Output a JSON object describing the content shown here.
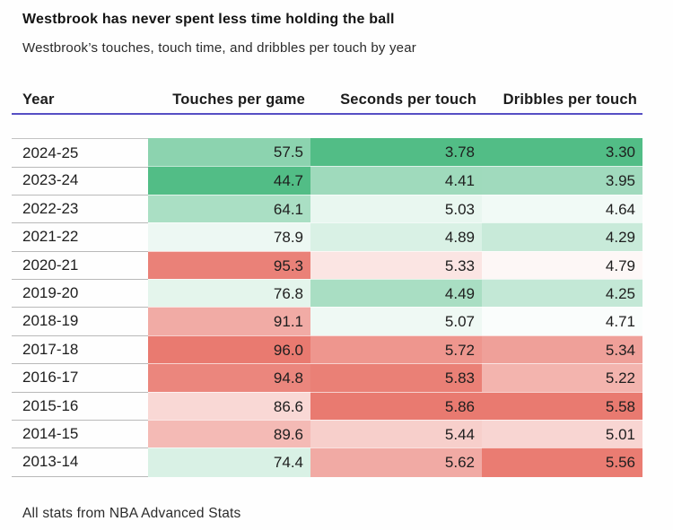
{
  "title": "Westbrook has never spent less time holding the ball",
  "subtitle": "Westbrook’s touches, touch time, and dribbles per touch by year",
  "footer_note": "All stats from NBA Advanced Stats",
  "accent_colors": {
    "header_underline": "#564fc4",
    "heat_green_max": "#52BD86",
    "heat_mid": "#FFFFFF",
    "heat_red_max": "#E97A70"
  },
  "table": {
    "columns": {
      "year": "Year",
      "touches": "Touches per game",
      "seconds": "Seconds per touch",
      "dribbles": "Dribbles per touch"
    },
    "rows": [
      {
        "year": "2024-25",
        "touches": "57.5",
        "seconds": "3.78",
        "dribbles": "3.30",
        "colors": {
          "touches": "#8CD3AF",
          "seconds": "#52BD86",
          "dribbles": "#52BD86"
        }
      },
      {
        "year": "2023-24",
        "touches": "44.7",
        "seconds": "4.41",
        "dribbles": "3.95",
        "colors": {
          "touches": "#52BD86",
          "seconds": "#9FDABC",
          "dribbles": "#A0DABD"
        }
      },
      {
        "year": "2022-23",
        "touches": "64.1",
        "seconds": "5.03",
        "dribbles": "4.64",
        "colors": {
          "touches": "#AADFC4",
          "seconds": "#E9F7F0",
          "dribbles": "#F1FAF6"
        }
      },
      {
        "year": "2021-22",
        "touches": "78.9",
        "seconds": "4.89",
        "dribbles": "4.29",
        "colors": {
          "touches": "#EDF8F3",
          "seconds": "#D9F1E5",
          "dribbles": "#C8EAD9"
        }
      },
      {
        "year": "2020-21",
        "touches": "95.3",
        "seconds": "5.33",
        "dribbles": "4.79",
        "colors": {
          "touches": "#EA8178",
          "seconds": "#FBE5E3",
          "dribbles": "#FDF7F6"
        }
      },
      {
        "year": "2019-20",
        "touches": "76.8",
        "seconds": "4.49",
        "dribbles": "4.25",
        "colors": {
          "touches": "#E4F5EC",
          "seconds": "#A9DEC3",
          "dribbles": "#C3E8D6"
        }
      },
      {
        "year": "2018-19",
        "touches": "91.1",
        "seconds": "5.07",
        "dribbles": "4.71",
        "colors": {
          "touches": "#F1ABA5",
          "seconds": "#EFF9F4",
          "dribbles": "#FAFDFC"
        }
      },
      {
        "year": "2017-18",
        "touches": "96.0",
        "seconds": "5.72",
        "dribbles": "5.34",
        "colors": {
          "touches": "#E97A70",
          "seconds": "#EE968E",
          "dribbles": "#EFA099"
        }
      },
      {
        "year": "2016-17",
        "touches": "94.8",
        "seconds": "5.83",
        "dribbles": "5.22",
        "colors": {
          "touches": "#EB867D",
          "seconds": "#EA8076",
          "dribbles": "#F3B4AE"
        }
      },
      {
        "year": "2015-16",
        "touches": "86.6",
        "seconds": "5.86",
        "dribbles": "5.58",
        "colors": {
          "touches": "#F9D8D5",
          "seconds": "#E97A70",
          "dribbles": "#E97A70"
        }
      },
      {
        "year": "2014-15",
        "touches": "89.6",
        "seconds": "5.44",
        "dribbles": "5.01",
        "colors": {
          "touches": "#F4BAB5",
          "seconds": "#F7CFCB",
          "dribbles": "#F8D5D2"
        }
      },
      {
        "year": "2013-14",
        "touches": "74.4",
        "seconds": "5.62",
        "dribbles": "5.56",
        "colors": {
          "touches": "#D9F1E5",
          "seconds": "#F1AAA4",
          "dribbles": "#EA7C72"
        }
      }
    ]
  },
  "chart_data": {
    "type": "table",
    "subtype": "heatmap-table",
    "title": "Westbrook has never spent less time holding the ball",
    "subtitle": "Westbrook’s touches, touch time, and dribbles per touch by year",
    "columns": [
      "Year",
      "Touches per game",
      "Seconds per touch",
      "Dribbles per touch"
    ],
    "categories": [
      "2024-25",
      "2023-24",
      "2022-23",
      "2021-22",
      "2020-21",
      "2019-20",
      "2018-19",
      "2017-18",
      "2016-17",
      "2015-16",
      "2014-15",
      "2013-14"
    ],
    "series": [
      {
        "name": "Touches per game",
        "values": [
          57.5,
          44.7,
          64.1,
          78.9,
          95.3,
          76.8,
          91.1,
          96.0,
          94.8,
          86.6,
          89.6,
          74.4
        ]
      },
      {
        "name": "Seconds per touch",
        "values": [
          3.78,
          4.41,
          5.03,
          4.89,
          5.33,
          4.49,
          5.07,
          5.72,
          5.83,
          5.86,
          5.44,
          5.62
        ]
      },
      {
        "name": "Dribbles per touch",
        "values": [
          3.3,
          3.95,
          4.64,
          4.29,
          4.79,
          4.25,
          4.71,
          5.34,
          5.22,
          5.58,
          5.01,
          5.56
        ]
      }
    ],
    "color_coding": "per-column diverging heatmap: low values green (#52BD86), median white, high values red (#E97A70)",
    "annotations": [
      "All stats from NBA Advanced Stats"
    ],
    "legend_position": "none",
    "grid": "off"
  }
}
